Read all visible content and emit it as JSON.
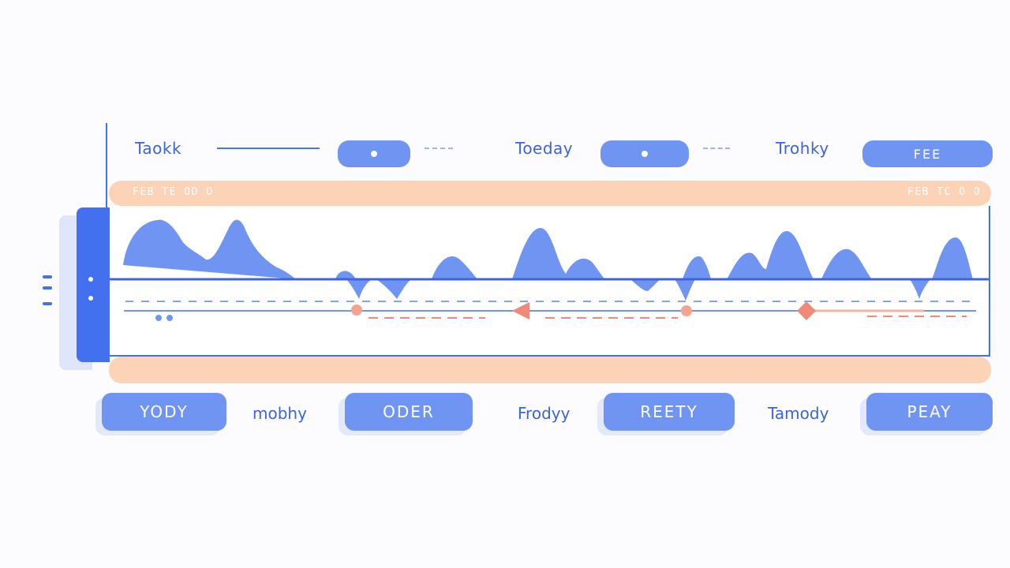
{
  "top_bar": {
    "items": [
      {
        "label": "Taokk"
      },
      {
        "label": "Toeday"
      },
      {
        "label": "Trohky"
      }
    ],
    "fee_button": "FEE"
  },
  "band": {
    "left_text": "FEB TE OD O",
    "right_text": "FEB TC O O"
  },
  "bottom_bar": {
    "buttons": [
      "YODY",
      "ODER",
      "REETY",
      "PEAY"
    ],
    "labels": [
      "mobhy",
      "Frodyy",
      "Tamody"
    ]
  },
  "colors": {
    "accent": "#4270ef",
    "wave": "#6f94f2",
    "band": "#fdd3b8",
    "marker": "#f08a78"
  }
}
